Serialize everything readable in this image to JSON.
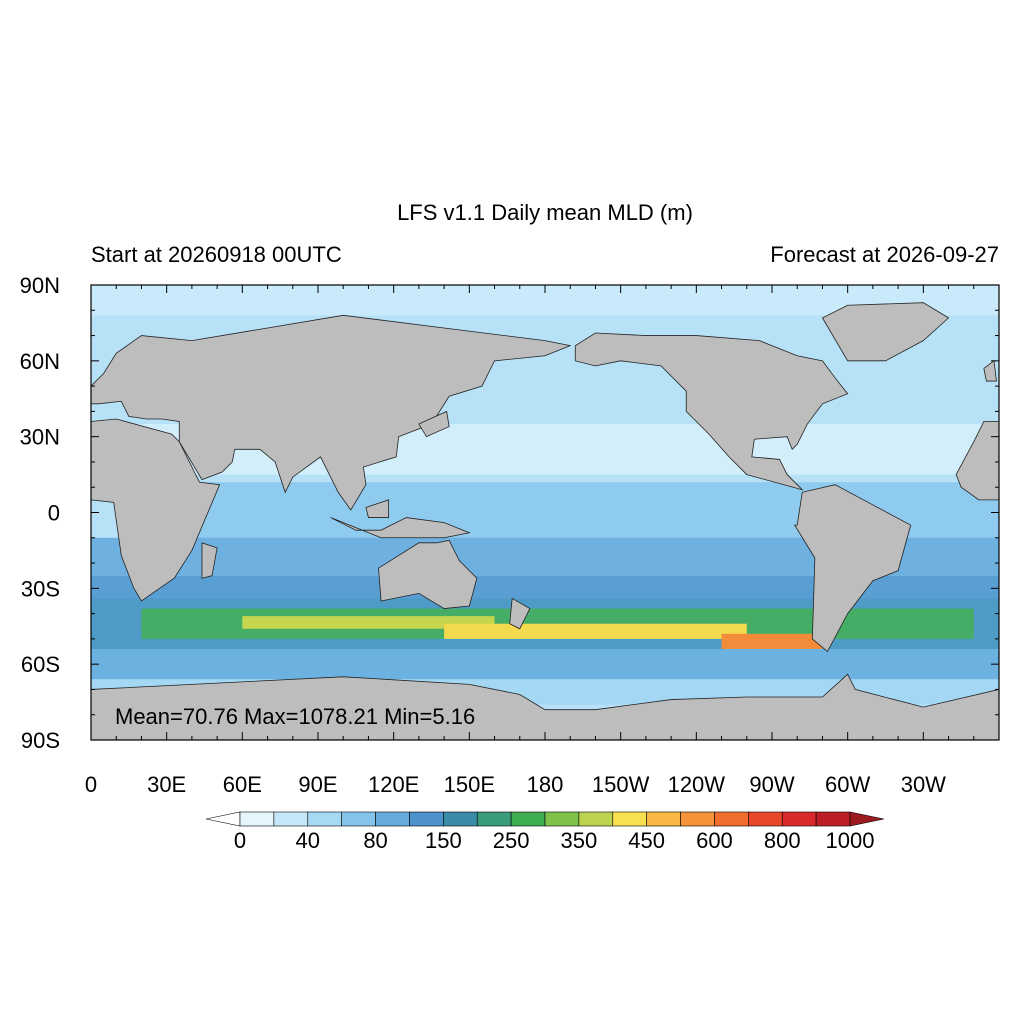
{
  "title": "LFS v1.1 Daily mean MLD (m)",
  "left_string": "Start at 20260918 00UTC",
  "right_string": "Forecast at 2026-09-27",
  "annotation": "Mean=70.76  Max=1078.21  Min=5.16",
  "lat_labels": [
    "90N",
    "60N",
    "30N",
    "0",
    "30S",
    "60S",
    "90S"
  ],
  "lon_labels": [
    "0",
    "30E",
    "60E",
    "90E",
    "120E",
    "150E",
    "180",
    "150W",
    "120W",
    "90W",
    "60W",
    "30W"
  ],
  "colorbar": {
    "labels": [
      "0",
      "40",
      "80",
      "150",
      "250",
      "350",
      "450",
      "600",
      "800",
      "1000"
    ],
    "colors": [
      "#ffffff",
      "#e6f4fc",
      "#c4e8f9",
      "#a6d9f4",
      "#84c4ea",
      "#67abdc",
      "#4d92cc",
      "#3b8ca8",
      "#3b9c7c",
      "#3fae52",
      "#7ec24a",
      "#bcd350",
      "#f8e050",
      "#f9b743",
      "#f6923a",
      "#f06d2d",
      "#e8482a",
      "#d9292a",
      "#bd1f26",
      "#9c1b20"
    ]
  }
}
